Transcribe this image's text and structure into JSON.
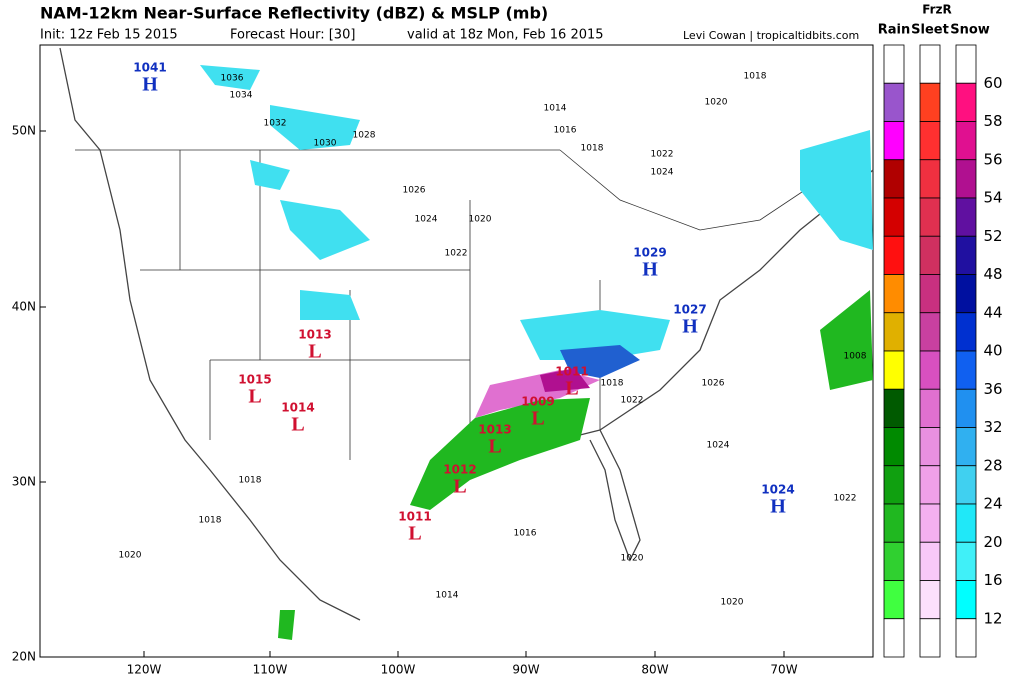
{
  "header": {
    "title": "NAM-12km Near-Surface Reflectivity (dBZ) & MSLP (mb)",
    "init": "Init: 12z Feb 15 2015",
    "forecast": "Forecast Hour: [30]",
    "valid": "valid at 18z Mon, Feb 16 2015",
    "credit": "Levi Cowan | tropicaltidbits.com"
  },
  "legend": {
    "title": "FrzR",
    "columns": [
      "Rain",
      "Sleet",
      "Snow"
    ],
    "levels": [
      "60",
      "58",
      "56",
      "54",
      "52",
      "48",
      "44",
      "40",
      "36",
      "32",
      "28",
      "24",
      "20",
      "16",
      "12"
    ],
    "colors": {
      "rain": [
        "#ffffff",
        "#9955cc",
        "#ff00ff",
        "#b00000",
        "#d40000",
        "#ff1010",
        "#ff8c00",
        "#e0b000",
        "#ffff00",
        "#005a00",
        "#008a00",
        "#10a010",
        "#20b820",
        "#30d030",
        "#40ff40",
        "#ffffff"
      ],
      "sleet": [
        "#ffffff",
        "#ff4020",
        "#ff3030",
        "#f03040",
        "#e03050",
        "#d03060",
        "#c83080",
        "#c840a0",
        "#d850c0",
        "#e070d0",
        "#e890e0",
        "#f0a0e8",
        "#f4b0f0",
        "#f8c8f8",
        "#fce0fc",
        "#ffffff"
      ],
      "snow": [
        "#ffffff",
        "#ff1080",
        "#e01090",
        "#b01090",
        "#6010a0",
        "#2010a0",
        "#0010a0",
        "#0030d0",
        "#1060f0",
        "#2090f0",
        "#30b0f0",
        "#40d0f0",
        "#20e8f8",
        "#40f0f8",
        "#00ffff",
        "#ffffff"
      ]
    }
  },
  "map": {
    "lat_labels": [
      "50N",
      "40N",
      "30N",
      "20N"
    ],
    "lon_labels": [
      "120W",
      "110W",
      "100W",
      "90W",
      "80W",
      "70W"
    ],
    "centers": [
      {
        "symbol": "H",
        "pressure": "1041"
      },
      {
        "symbol": "L",
        "pressure": "1013"
      },
      {
        "symbol": "L",
        "pressure": "1015"
      },
      {
        "symbol": "L",
        "pressure": "1014"
      },
      {
        "symbol": "L",
        "pressure": "1013"
      },
      {
        "symbol": "L",
        "pressure": "1009"
      },
      {
        "symbol": "L",
        "pressure": "1011"
      },
      {
        "symbol": "L",
        "pressure": "1012"
      },
      {
        "symbol": "L",
        "pressure": "1011"
      },
      {
        "symbol": "H",
        "pressure": "1029"
      },
      {
        "symbol": "H",
        "pressure": "1027"
      },
      {
        "symbol": "H",
        "pressure": "1024"
      }
    ],
    "isobar_labels": [
      "1036",
      "1034",
      "1032",
      "1030",
      "1028",
      "1026",
      "1024",
      "1022",
      "1020",
      "1014",
      "1016",
      "1018",
      "1020",
      "1022",
      "1024",
      "1018",
      "1024",
      "1022",
      "1020",
      "1016",
      "1014",
      "1020",
      "1020",
      "1008",
      "1026",
      "1018",
      "1022",
      "1018",
      "1018"
    ]
  }
}
